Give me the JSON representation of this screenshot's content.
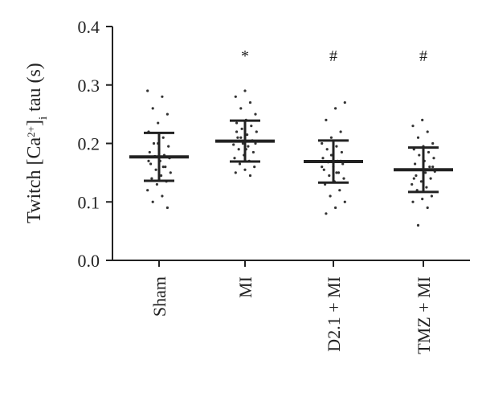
{
  "chart_data": {
    "type": "dotplot",
    "y_label_parts": [
      "Twitch [Ca",
      "2+",
      "]",
      "i",
      " tau (s)"
    ],
    "categories": [
      "Sham",
      "MI",
      "D2.1 + MI",
      "TMZ + MI"
    ],
    "annotations": [
      null,
      "*",
      "#",
      "#"
    ],
    "mean": [
      0.177,
      0.204,
      0.169,
      0.155
    ],
    "sd": [
      0.041,
      0.035,
      0.036,
      0.038
    ],
    "points": [
      [
        0.29,
        0.28,
        0.26,
        0.25,
        0.235,
        0.22,
        0.21,
        0.2,
        0.195,
        0.19,
        0.185,
        0.18,
        0.178,
        0.175,
        0.17,
        0.165,
        0.16,
        0.155,
        0.15,
        0.145,
        0.14,
        0.135,
        0.13,
        0.12,
        0.11,
        0.1,
        0.09,
        0.2,
        0.17,
        0.16
      ],
      [
        0.29,
        0.28,
        0.27,
        0.26,
        0.25,
        0.24,
        0.235,
        0.23,
        0.225,
        0.22,
        0.215,
        0.21,
        0.205,
        0.2,
        0.198,
        0.195,
        0.19,
        0.185,
        0.18,
        0.175,
        0.17,
        0.165,
        0.16,
        0.155,
        0.15,
        0.145,
        0.21,
        0.2,
        0.19,
        0.22
      ],
      [
        0.27,
        0.26,
        0.24,
        0.22,
        0.21,
        0.2,
        0.195,
        0.19,
        0.185,
        0.18,
        0.175,
        0.17,
        0.168,
        0.165,
        0.16,
        0.155,
        0.15,
        0.145,
        0.14,
        0.135,
        0.13,
        0.12,
        0.11,
        0.1,
        0.09,
        0.08,
        0.17,
        0.18,
        0.16,
        0.15
      ],
      [
        0.24,
        0.23,
        0.22,
        0.21,
        0.2,
        0.195,
        0.19,
        0.185,
        0.18,
        0.175,
        0.17,
        0.165,
        0.16,
        0.155,
        0.152,
        0.15,
        0.145,
        0.14,
        0.135,
        0.13,
        0.125,
        0.12,
        0.11,
        0.105,
        0.1,
        0.09,
        0.06,
        0.16,
        0.15,
        0.14
      ]
    ],
    "ylim": [
      0,
      0.4
    ],
    "yticks": [
      {
        "value": 0,
        "label": "0.0"
      },
      0.1,
      0.2,
      0.3,
      0.4
    ]
  }
}
